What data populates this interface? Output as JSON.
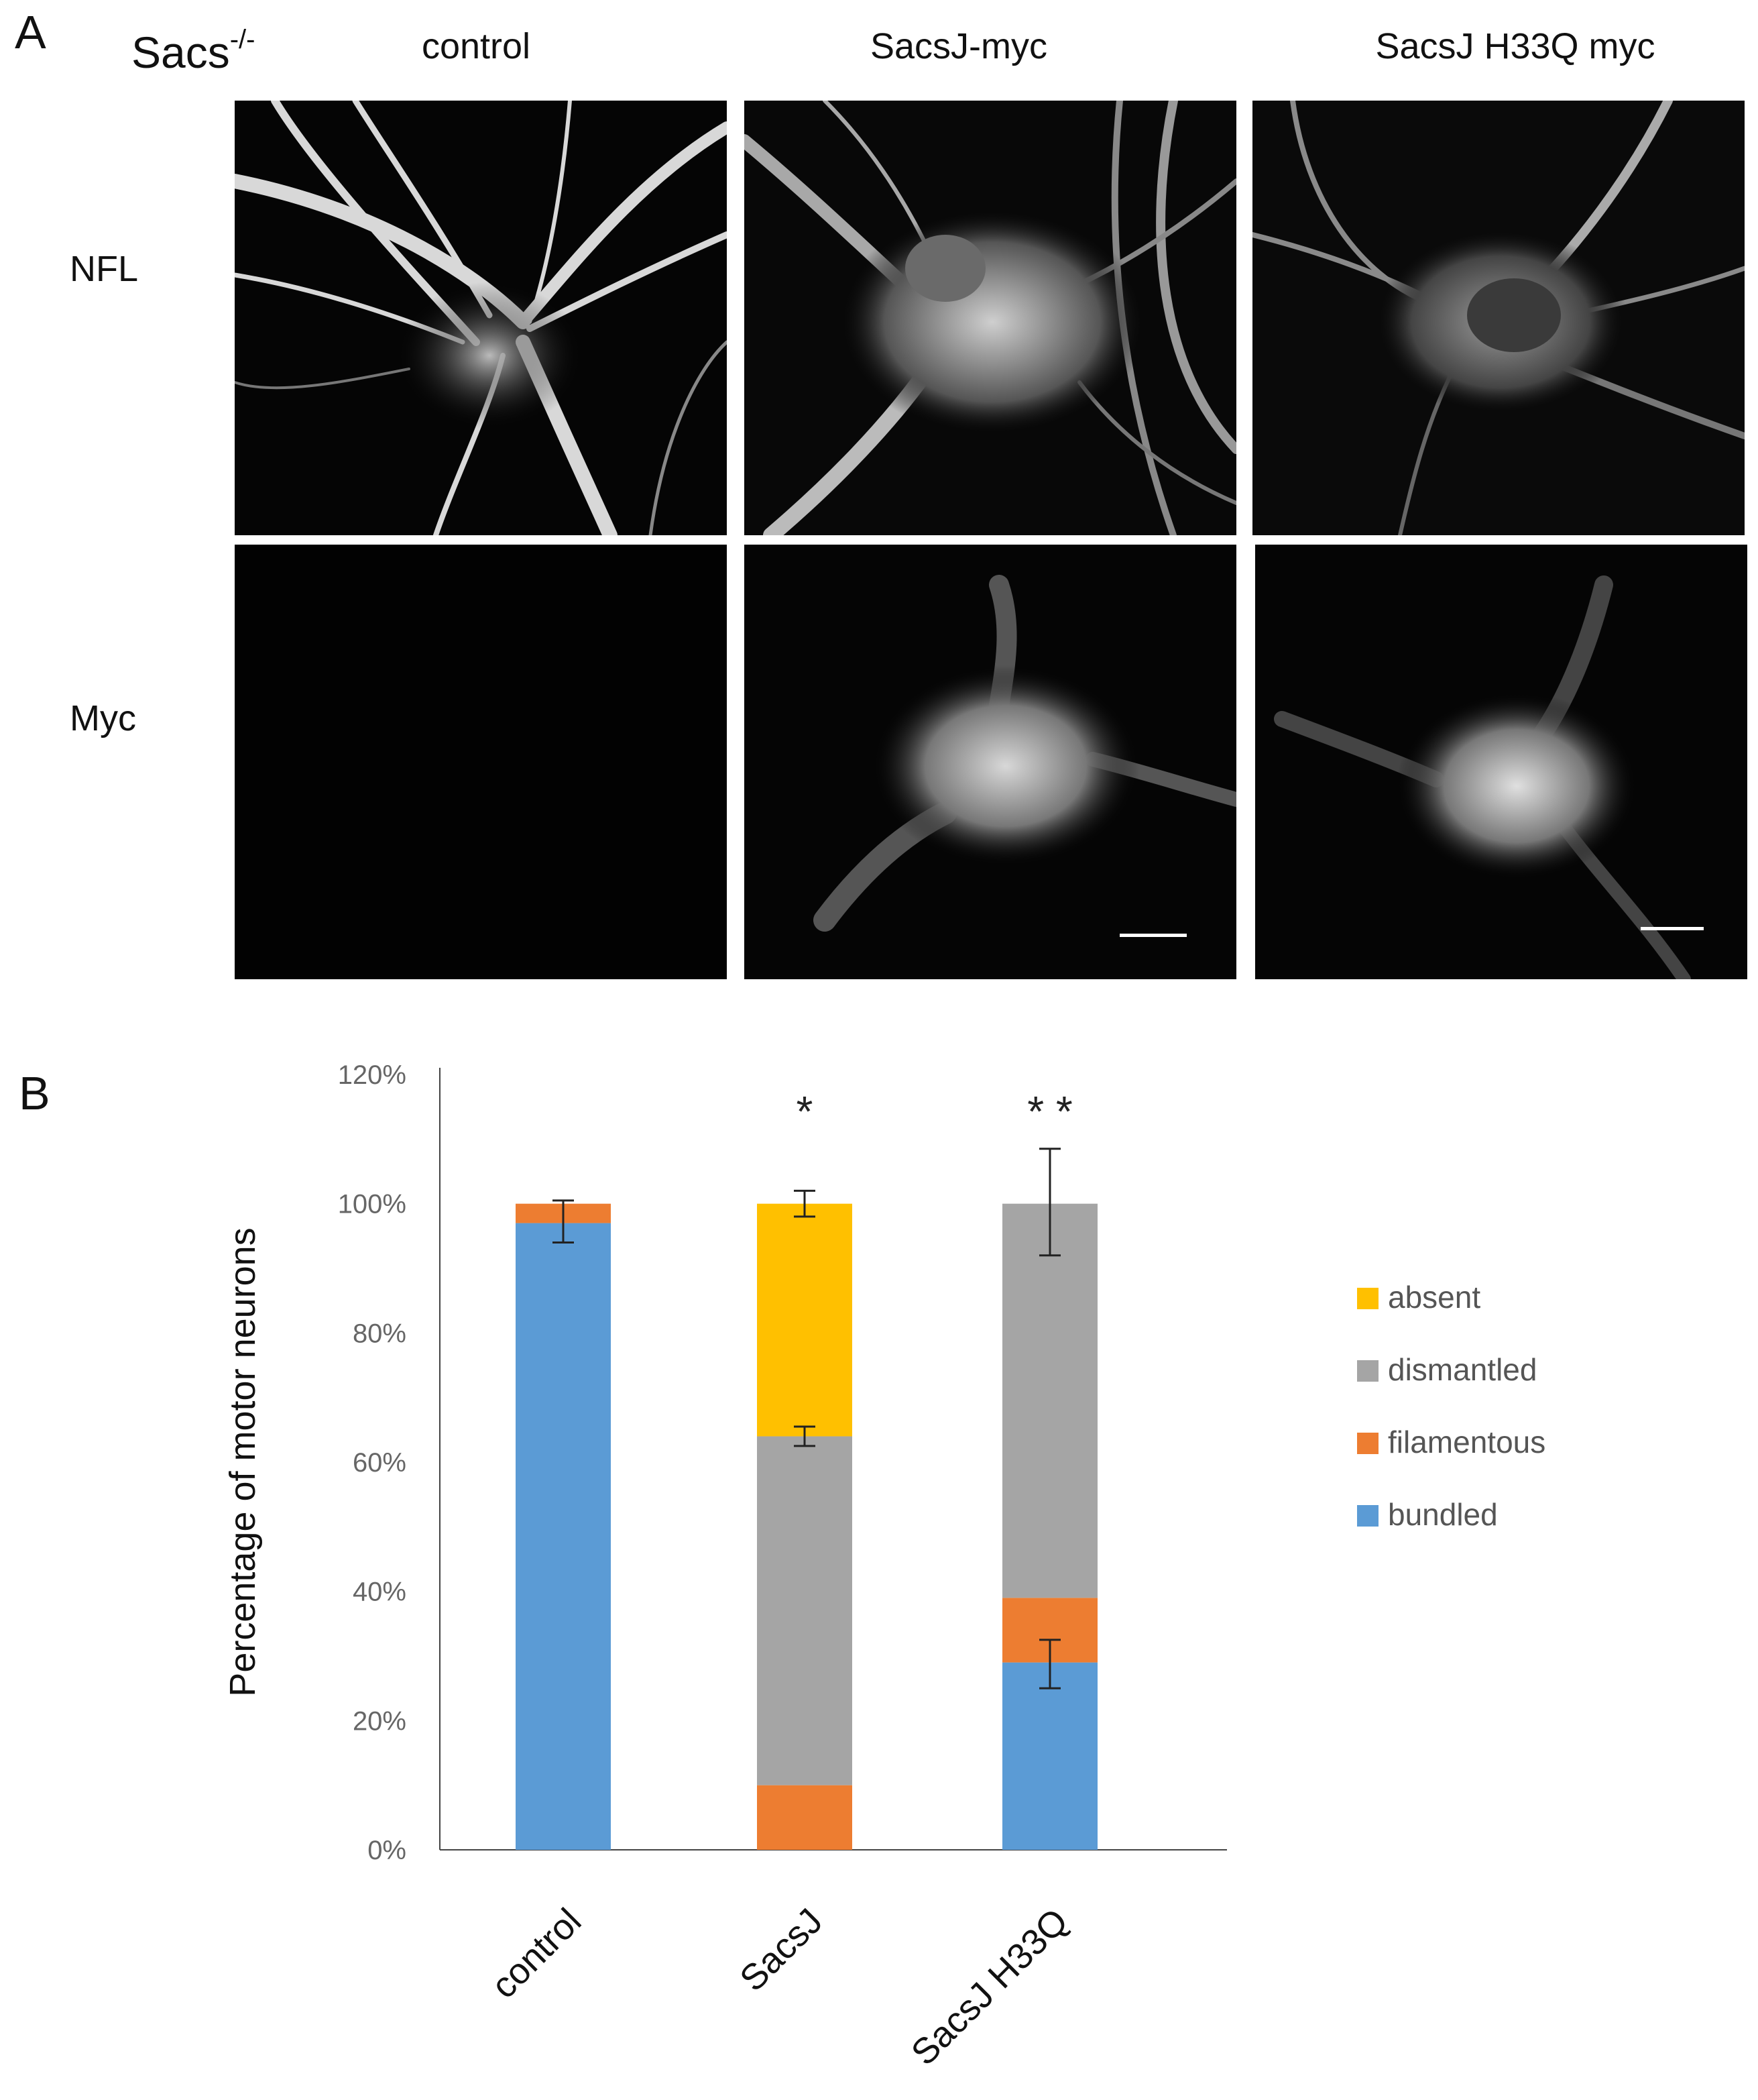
{
  "panelA": {
    "letter": "A",
    "genotype_base": "Sacs",
    "genotype_sup": "-/-",
    "columns": [
      "control",
      "SacsJ-myc",
      "SacsJ H33Q myc"
    ],
    "rows": [
      "NFL",
      "Myc"
    ]
  },
  "panelB": {
    "letter": "B"
  },
  "chart_data": {
    "type": "bar",
    "stacked": true,
    "ylabel": "Percentage of motor neurons",
    "ylim": [
      0,
      120
    ],
    "yticks": [
      "0%",
      "20%",
      "40%",
      "60%",
      "80%",
      "100%",
      "120%"
    ],
    "categories": [
      "control",
      "SacsJ",
      "SacsJ H33Q"
    ],
    "series": [
      {
        "name": "bundled",
        "color": "#5b9bd5",
        "values": [
          97,
          0,
          29
        ]
      },
      {
        "name": "filamentous",
        "color": "#ed7d31",
        "values": [
          3,
          10,
          10
        ]
      },
      {
        "name": "dismantled",
        "color": "#a5a5a5",
        "values": [
          0,
          54,
          61
        ]
      },
      {
        "name": "absent",
        "color": "#ffc000",
        "values": [
          0,
          36,
          0
        ]
      }
    ],
    "error_bars": [
      {
        "category": "control",
        "center": 97,
        "low": 94,
        "high": 100.5
      },
      {
        "category": "SacsJ",
        "center": 64,
        "low": 62.5,
        "high": 65.5
      },
      {
        "category": "SacsJ",
        "center": 100,
        "low": 98,
        "high": 102
      },
      {
        "category": "SacsJ H33Q",
        "center": 29,
        "low": 25,
        "high": 32.5
      },
      {
        "category": "SacsJ H33Q",
        "center": 100,
        "low": 92,
        "high": 108.5
      }
    ],
    "significance": [
      "",
      "*",
      "* *"
    ],
    "legend_order": [
      "absent",
      "dismantled",
      "filamentous",
      "bundled"
    ],
    "legend_placement": "right"
  }
}
